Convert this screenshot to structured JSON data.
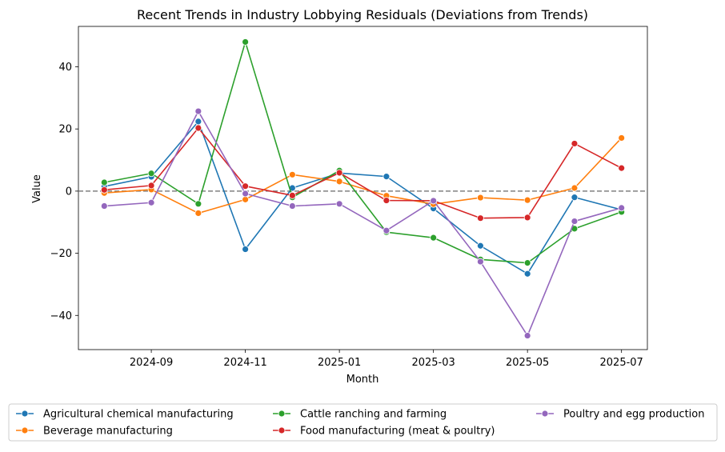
{
  "chart_data": {
    "type": "line",
    "title": "Recent Trends in Industry Lobbying Residuals (Deviations from Trends)",
    "xlabel": "Month",
    "ylabel": "Value",
    "x": [
      "2024-08",
      "2024-09",
      "2024-10",
      "2024-11",
      "2024-12",
      "2025-01",
      "2025-02",
      "2025-03",
      "2025-04",
      "2025-05",
      "2025-06",
      "2025-07"
    ],
    "x_tick_labels": [
      "2024-09",
      "2024-11",
      "2025-01",
      "2025-03",
      "2025-05",
      "2025-07"
    ],
    "ylim": [
      -51,
      53
    ],
    "y_ticks": [
      -40,
      -20,
      0,
      20,
      40
    ],
    "y_tick_labels": [
      "−40",
      "−20",
      "0",
      "20",
      "40"
    ],
    "reference_line": {
      "y": 0,
      "style": "dashed",
      "color": "#808080"
    },
    "grid": false,
    "legend_position": "bottom",
    "series": [
      {
        "name": "Agricultural chemical manufacturing",
        "color": "#1f77b4",
        "values": [
          1.5,
          4.6,
          22.4,
          -18.7,
          1.0,
          5.8,
          4.7,
          -5.6,
          -17.6,
          -26.6,
          -2.0,
          -6.0
        ]
      },
      {
        "name": "Beverage manufacturing",
        "color": "#ff7f0e",
        "values": [
          -0.6,
          0.5,
          -7.1,
          -2.7,
          5.3,
          3.1,
          -1.5,
          -4.2,
          -2.1,
          -2.9,
          1.0,
          17.1
        ]
      },
      {
        "name": "Cattle ranching and farming",
        "color": "#2ca02c",
        "values": [
          2.8,
          5.7,
          -4.1,
          48.0,
          -2.0,
          6.6,
          -13.2,
          -15.0,
          -22.0,
          -23.1,
          -12.1,
          -6.7
        ]
      },
      {
        "name": "Food manufacturing (meat & poultry)",
        "color": "#d62728",
        "values": [
          0.4,
          1.8,
          20.3,
          1.6,
          -1.4,
          5.9,
          -3.0,
          -3.1,
          -8.7,
          -8.5,
          15.3,
          7.4
        ]
      },
      {
        "name": "Poultry and egg production",
        "color": "#9467bd",
        "values": [
          -4.8,
          -3.7,
          25.7,
          -0.8,
          -4.8,
          -4.1,
          -12.7,
          -3.1,
          -22.7,
          -46.5,
          -9.7,
          -5.4
        ]
      }
    ]
  }
}
